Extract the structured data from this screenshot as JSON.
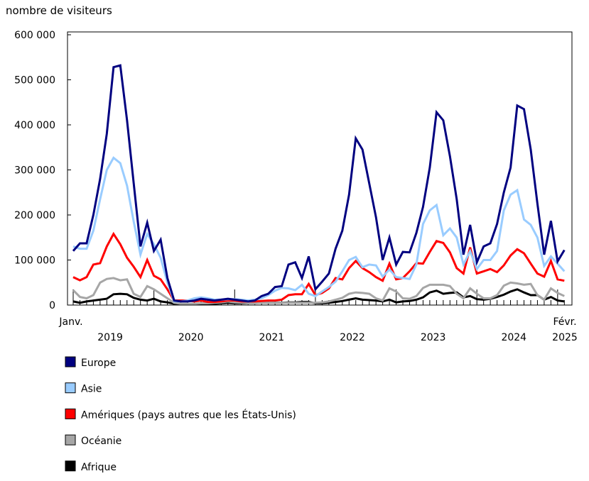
{
  "chart_data": {
    "type": "line",
    "ylabel": "nombre de visiteurs",
    "ylim": [
      0,
      600000
    ],
    "yticks": [
      0,
      100000,
      200000,
      300000,
      400000,
      500000,
      600000
    ],
    "ytick_labels": [
      "0",
      "100 000",
      "200 000",
      "300 000",
      "400 000",
      "500 000",
      "600 000"
    ],
    "x_start_label": "Janv.",
    "x_end_label": "Févr.",
    "x_period": "monthly, January 2019 to February 2025",
    "year_labels": [
      "2019",
      "2020",
      "2021",
      "2022",
      "2023",
      "2024",
      "2025"
    ],
    "legend_placement": "bottom-left",
    "series": [
      {
        "name": "Europe",
        "color": "#000080",
        "values": [
          120000,
          137000,
          137000,
          200000,
          280000,
          380000,
          528000,
          532000,
          410000,
          270000,
          130000,
          183000,
          120000,
          145000,
          60000,
          10000,
          8000,
          8000,
          10000,
          14000,
          12000,
          10000,
          12000,
          14000,
          12000,
          10000,
          8000,
          10000,
          20000,
          25000,
          40000,
          42000,
          90000,
          95000,
          60000,
          108000,
          35000,
          52000,
          70000,
          125000,
          165000,
          245000,
          370000,
          345000,
          270000,
          195000,
          100000,
          150000,
          90000,
          118000,
          117000,
          160000,
          218000,
          305000,
          428000,
          410000,
          330000,
          235000,
          112000,
          178000,
          95000,
          130000,
          137000,
          180000,
          250000,
          305000,
          443000,
          435000,
          345000,
          225000,
          112000,
          187000,
          97000,
          122000
        ]
      },
      {
        "name": "Asie",
        "color": "#99ccff",
        "values": [
          130000,
          125000,
          125000,
          165000,
          235000,
          300000,
          327000,
          315000,
          265000,
          185000,
          112000,
          158000,
          135000,
          105000,
          50000,
          8000,
          8000,
          10000,
          15000,
          17000,
          15000,
          12000,
          12000,
          13000,
          13000,
          12000,
          10000,
          12000,
          15000,
          22000,
          32000,
          38000,
          37000,
          33000,
          45000,
          25000,
          20000,
          30000,
          40000,
          52000,
          75000,
          100000,
          107000,
          84000,
          90000,
          88000,
          63000,
          79000,
          62000,
          60000,
          58000,
          90000,
          180000,
          210000,
          222000,
          155000,
          170000,
          150000,
          90000,
          120000,
          80000,
          100000,
          100000,
          120000,
          210000,
          245000,
          255000,
          190000,
          178000,
          150000,
          87000,
          108000,
          92000,
          75000
        ]
      },
      {
        "name": "Amériques (pays autres que les États-Unis)",
        "color": "#ff0000",
        "values": [
          62000,
          55000,
          62000,
          90000,
          93000,
          130000,
          158000,
          135000,
          105000,
          85000,
          62000,
          100000,
          65000,
          57000,
          35000,
          10000,
          10000,
          10000,
          8000,
          10000,
          7000,
          7000,
          8000,
          10000,
          10000,
          8000,
          8000,
          8000,
          9000,
          10000,
          10000,
          12000,
          22000,
          24000,
          24000,
          47000,
          22000,
          27000,
          37000,
          60000,
          57000,
          82000,
          98000,
          82000,
          73000,
          62000,
          54000,
          92000,
          57000,
          60000,
          75000,
          93000,
          92000,
          118000,
          142000,
          138000,
          117000,
          82000,
          70000,
          128000,
          70000,
          75000,
          80000,
          73000,
          88000,
          110000,
          124000,
          115000,
          92000,
          70000,
          63000,
          98000,
          57000,
          54000
        ]
      },
      {
        "name": "Océanie",
        "color": "#a6a6a6",
        "values": [
          33000,
          18000,
          15000,
          22000,
          50000,
          58000,
          60000,
          55000,
          57000,
          25000,
          18000,
          42000,
          35000,
          25000,
          15000,
          5000,
          3000,
          3000,
          3000,
          4000,
          4000,
          5000,
          6000,
          8000,
          6000,
          5000,
          4000,
          4000,
          5000,
          5000,
          5000,
          5000,
          5000,
          5000,
          5000,
          5000,
          5000,
          6000,
          8000,
          12000,
          16000,
          25000,
          28000,
          27000,
          25000,
          15000,
          10000,
          37000,
          30000,
          15000,
          14000,
          20000,
          38000,
          45000,
          45000,
          45000,
          42000,
          25000,
          15000,
          37000,
          25000,
          15000,
          15000,
          22000,
          43000,
          50000,
          48000,
          45000,
          47000,
          22000,
          12000,
          37000,
          27000,
          20000
        ]
      },
      {
        "name": "Afrique",
        "color": "#000000",
        "values": [
          8000,
          5000,
          8000,
          10000,
          12000,
          14000,
          24000,
          25000,
          24000,
          16000,
          12000,
          10000,
          14000,
          8000,
          6000,
          3000,
          2000,
          2000,
          2000,
          3000,
          3000,
          3000,
          4000,
          5000,
          4000,
          4000,
          4000,
          5000,
          5000,
          5000,
          5000,
          5000,
          6000,
          6000,
          7000,
          7000,
          4000,
          4000,
          5000,
          7000,
          9000,
          12000,
          15000,
          12000,
          11000,
          10000,
          8000,
          12000,
          6000,
          8000,
          9000,
          12000,
          17000,
          28000,
          32000,
          25000,
          27000,
          28000,
          17000,
          20000,
          13000,
          12000,
          14000,
          18000,
          23000,
          30000,
          35000,
          28000,
          22000,
          22000,
          12000,
          18000,
          10000,
          8000
        ]
      }
    ]
  }
}
